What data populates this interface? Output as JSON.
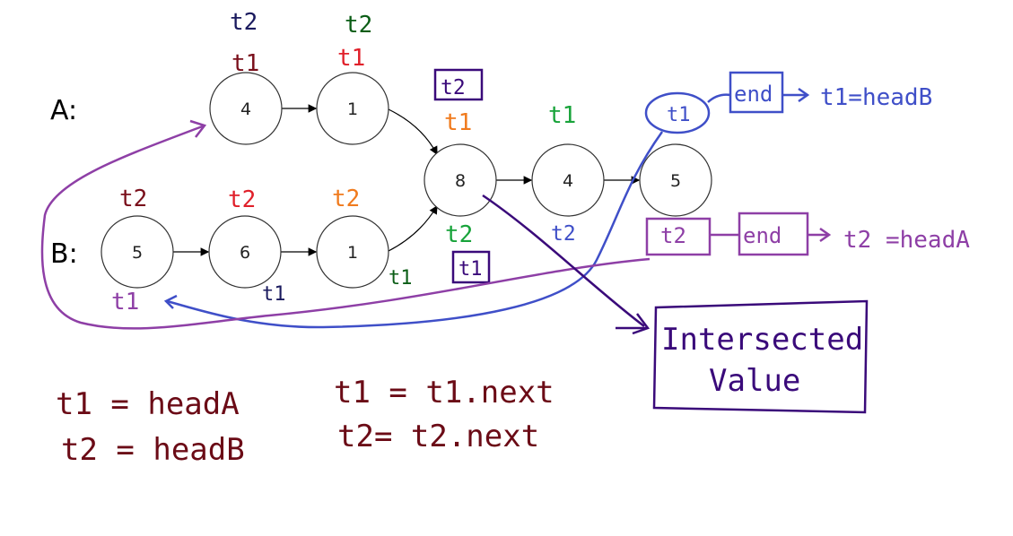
{
  "lists": {
    "a": {
      "label": "A:",
      "nodes": [
        "4",
        "1"
      ]
    },
    "b": {
      "label": "B:",
      "nodes": [
        "5",
        "6",
        "1"
      ]
    },
    "shared": [
      "8",
      "4",
      "5"
    ]
  },
  "pointer_marks": {
    "a0_t2": "t2",
    "a0_t1": "t1",
    "a1_t2": "t2",
    "a1_t1": "t1",
    "boxed_t2_top": "t2",
    "c8_t1": "t1",
    "c4_t1": "t1",
    "b0_t2": "t2",
    "b0_t1": "t1",
    "b1_t2": "t2",
    "b1_t1": "t1",
    "b2_t2": "t2",
    "b2_t1": "t1",
    "c8_t2": "t2",
    "boxed_t1_bottom": "t1",
    "c4_t2": "t2",
    "end_t1_circle": "t1"
  },
  "end_labels": {
    "top_end": "end",
    "top_reset": "t1=headB",
    "bottom_t2": "t2",
    "bottom_end": "end",
    "bottom_reset": "t2 =headA"
  },
  "result": {
    "line1": "Intersected",
    "line2": "Value"
  },
  "equations": {
    "init1": "t1 = headA",
    "init2": "t2  = headB",
    "step1": "t1 = t1.next",
    "step2": "t2= t2.next"
  },
  "colors": {
    "navy": "#1a1a5e",
    "darkgreen": "#0b5d16",
    "maroon": "#7a0f1b",
    "red": "#e0202a",
    "orange": "#f07b1e",
    "green": "#18a33a",
    "blue": "#3f4fc8",
    "purple": "#8e3fa6",
    "darkpurple": "#3a0a7a",
    "eqmaroon": "#6b0b16"
  }
}
